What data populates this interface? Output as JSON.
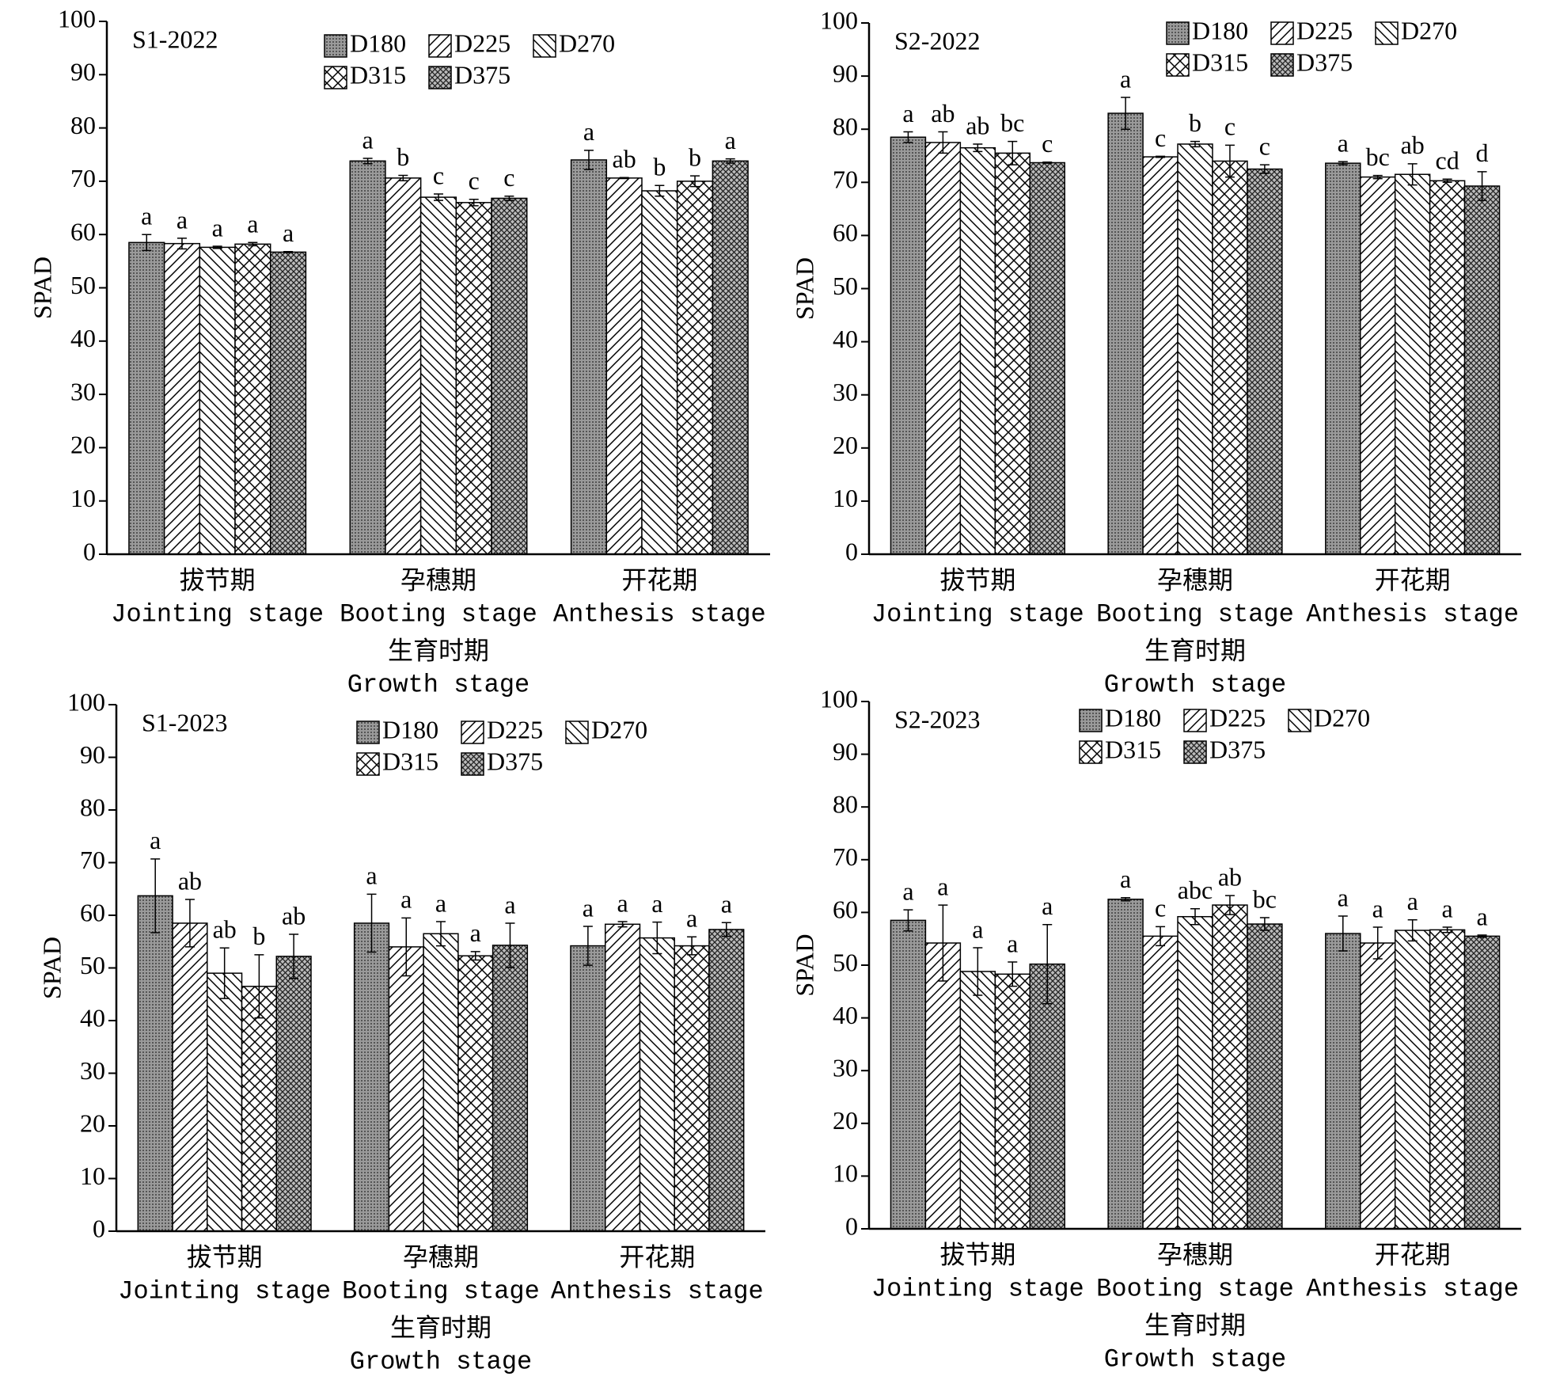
{
  "chart_data": [
    {
      "type": "bar",
      "title": "S1-2022",
      "ylabel": "SPAD",
      "xlabel": [
        "生育时期",
        "Growth stage"
      ],
      "categories": [
        [
          "拔节期",
          "Jointing stage"
        ],
        [
          "孕穗期",
          "Booting stage"
        ],
        [
          "开花期",
          "Anthesis stage"
        ]
      ],
      "ylim": [
        0,
        100
      ],
      "yticks": [
        0,
        10,
        20,
        30,
        40,
        50,
        60,
        70,
        80,
        90,
        100
      ],
      "series": [
        {
          "name": "D180",
          "pattern": "dots",
          "values": [
            58.5,
            73.8,
            74.0
          ],
          "errors": [
            1.5,
            0.5,
            1.8
          ],
          "letters": [
            "a",
            "a",
            "a"
          ]
        },
        {
          "name": "D225",
          "pattern": "forward",
          "values": [
            58.3,
            70.6,
            70.6
          ],
          "errors": [
            1.0,
            0.5,
            0.1
          ],
          "letters": [
            "a",
            "b",
            "ab"
          ]
        },
        {
          "name": "D270",
          "pattern": "back",
          "values": [
            57.6,
            67.0,
            68.2
          ],
          "errors": [
            0.2,
            0.6,
            1.0
          ],
          "letters": [
            "a",
            "c",
            "b"
          ]
        },
        {
          "name": "D315",
          "pattern": "cross",
          "values": [
            58.2,
            66.0,
            70.0
          ],
          "errors": [
            0.3,
            0.6,
            1.0
          ],
          "letters": [
            "a",
            "c",
            "b"
          ]
        },
        {
          "name": "D375",
          "pattern": "dense",
          "values": [
            56.7,
            66.8,
            73.8
          ],
          "errors": [
            0.1,
            0.4,
            0.4
          ],
          "letters": [
            "a",
            "c",
            "a"
          ]
        }
      ]
    },
    {
      "type": "bar",
      "title": "S2-2022",
      "ylabel": "SPAD",
      "xlabel": [
        "生育时期",
        "Growth stage"
      ],
      "categories": [
        [
          "拔节期",
          "Jointing stage"
        ],
        [
          "孕穗期",
          "Booting stage"
        ],
        [
          "开花期",
          "Anthesis stage"
        ]
      ],
      "ylim": [
        0,
        100
      ],
      "yticks": [
        0,
        10,
        20,
        30,
        40,
        50,
        60,
        70,
        80,
        90,
        100
      ],
      "series": [
        {
          "name": "D180",
          "pattern": "dots",
          "values": [
            78.5,
            83.0,
            73.6
          ],
          "errors": [
            1.0,
            3.0,
            0.3
          ],
          "letters": [
            "a",
            "a",
            "a"
          ]
        },
        {
          "name": "D225",
          "pattern": "forward",
          "values": [
            77.5,
            74.8,
            71.0
          ],
          "errors": [
            2.0,
            0.1,
            0.3
          ],
          "letters": [
            "ab",
            "c",
            "bc"
          ]
        },
        {
          "name": "D270",
          "pattern": "back",
          "values": [
            76.5,
            77.2,
            71.5
          ],
          "errors": [
            0.7,
            0.5,
            2.0
          ],
          "letters": [
            "ab",
            "b",
            "ab"
          ]
        },
        {
          "name": "D315",
          "pattern": "cross",
          "values": [
            75.5,
            74.0,
            70.3
          ],
          "errors": [
            2.2,
            3.0,
            0.3
          ],
          "letters": [
            "bc",
            "c",
            "cd"
          ]
        },
        {
          "name": "D375",
          "pattern": "dense",
          "values": [
            73.7,
            72.5,
            69.3
          ],
          "errors": [
            0.1,
            0.8,
            2.7
          ],
          "letters": [
            "c",
            "c",
            "d"
          ]
        }
      ]
    },
    {
      "type": "bar",
      "title": "S1-2023",
      "ylabel": "SPAD",
      "xlabel": [
        "生育时期",
        "Growth stage"
      ],
      "categories": [
        [
          "拔节期",
          "Jointing stage"
        ],
        [
          "孕穗期",
          "Booting stage"
        ],
        [
          "开花期",
          "Anthesis stage"
        ]
      ],
      "ylim": [
        0,
        100
      ],
      "yticks": [
        0,
        10,
        20,
        30,
        40,
        50,
        60,
        70,
        80,
        90,
        100
      ],
      "series": [
        {
          "name": "D180",
          "pattern": "dots",
          "values": [
            63.7,
            58.5,
            54.2
          ],
          "errors": [
            7.0,
            5.5,
            3.7
          ],
          "letters": [
            "a",
            "a",
            "a"
          ]
        },
        {
          "name": "D225",
          "pattern": "forward",
          "values": [
            58.5,
            54.0,
            58.3
          ],
          "errors": [
            4.5,
            5.5,
            0.5
          ],
          "letters": [
            "ab",
            "a",
            "a"
          ]
        },
        {
          "name": "D270",
          "pattern": "back",
          "values": [
            49.0,
            56.5,
            55.7
          ],
          "errors": [
            4.8,
            2.3,
            3.0
          ],
          "letters": [
            "ab",
            "a",
            "a"
          ]
        },
        {
          "name": "D315",
          "pattern": "cross",
          "values": [
            46.5,
            52.3,
            54.2
          ],
          "errors": [
            6.0,
            0.8,
            1.7
          ],
          "letters": [
            "b",
            "a",
            "a"
          ]
        },
        {
          "name": "D375",
          "pattern": "dense",
          "values": [
            52.2,
            54.3,
            57.3
          ],
          "errors": [
            4.2,
            4.2,
            1.3
          ],
          "letters": [
            "ab",
            "a",
            "a"
          ]
        }
      ]
    },
    {
      "type": "bar",
      "title": "S2-2023",
      "ylabel": "SPAD",
      "xlabel": [
        "生育时期",
        "Growth stage"
      ],
      "categories": [
        [
          "拔节期",
          "Jointing stage"
        ],
        [
          "孕穗期",
          "Booting stage"
        ],
        [
          "开花期",
          "Anthesis stage"
        ]
      ],
      "ylim": [
        0,
        100
      ],
      "yticks": [
        0,
        10,
        20,
        30,
        40,
        50,
        60,
        70,
        80,
        90,
        100
      ],
      "series": [
        {
          "name": "D180",
          "pattern": "dots",
          "values": [
            58.5,
            62.5,
            56.0
          ],
          "errors": [
            2.0,
            0.3,
            3.3
          ],
          "letters": [
            "a",
            "a",
            "a"
          ]
        },
        {
          "name": "D225",
          "pattern": "forward",
          "values": [
            54.2,
            55.5,
            54.2
          ],
          "errors": [
            7.2,
            1.8,
            3.0
          ],
          "letters": [
            "a",
            "c",
            "a"
          ]
        },
        {
          "name": "D270",
          "pattern": "back",
          "values": [
            48.8,
            59.2,
            56.6
          ],
          "errors": [
            4.5,
            1.5,
            2.0
          ],
          "letters": [
            "a",
            "abc",
            "a"
          ]
        },
        {
          "name": "D315",
          "pattern": "cross",
          "values": [
            48.3,
            61.4,
            56.7
          ],
          "errors": [
            2.3,
            1.8,
            0.5
          ],
          "letters": [
            "a",
            "ab",
            "a"
          ]
        },
        {
          "name": "D375",
          "pattern": "dense",
          "values": [
            50.2,
            57.8,
            55.5
          ],
          "errors": [
            7.5,
            1.2,
            0.2
          ],
          "letters": [
            "a",
            "bc",
            "a"
          ]
        }
      ]
    }
  ]
}
